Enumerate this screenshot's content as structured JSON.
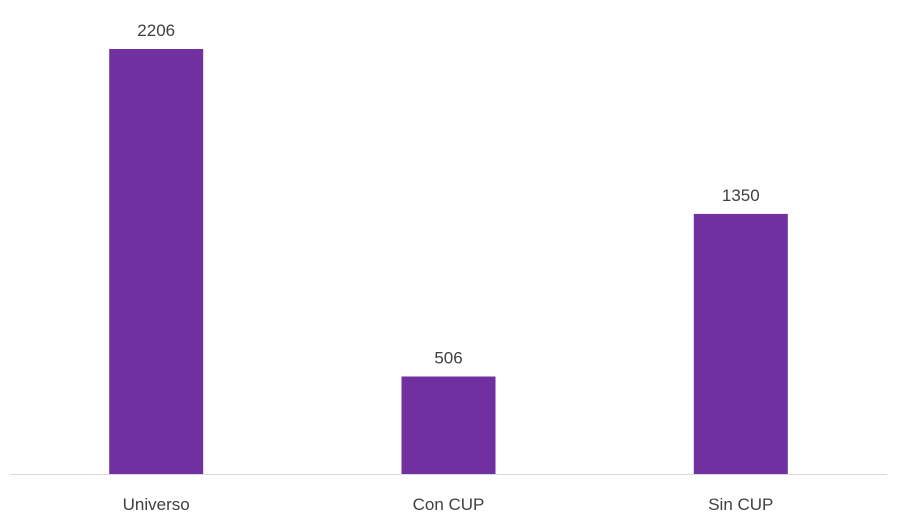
{
  "chart_data": {
    "type": "bar",
    "categories": [
      "Universo",
      "Con CUP",
      "Sin CUP"
    ],
    "values": [
      2206,
      506,
      1350
    ],
    "data_labels": [
      "2206",
      "506",
      "1350"
    ],
    "title": "",
    "xlabel": "",
    "ylabel": "",
    "ylim": [
      0,
      2400
    ],
    "grid": false,
    "legend": "none",
    "bar_color": "#7030A0",
    "axis_color": "#D9D9D9",
    "label_color": "#404040"
  }
}
